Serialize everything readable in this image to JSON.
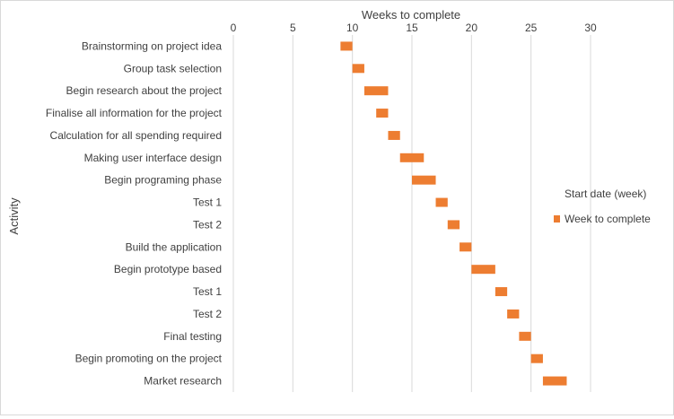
{
  "chart_data": {
    "type": "bar",
    "orientation": "horizontal",
    "stacked": true,
    "title": "",
    "xlabel": "Weeks to complete",
    "ylabel": "Activity",
    "x_axis_position": "top",
    "xlim": [
      0,
      30
    ],
    "xticks": [
      0,
      5,
      10,
      15,
      20,
      25,
      30
    ],
    "grid": true,
    "categories": [
      "Brainstorming on project idea",
      "Group task selection",
      "Begin research about the project",
      "Finalise all information for the project",
      "Calculation for all spending required",
      "Making user interface design",
      "Begin programing phase",
      "Test 1",
      "Test 2",
      "Build the application",
      "Begin prototype based",
      "Test 1",
      "Test 2",
      "Final testing",
      "Begin promoting on the project",
      "Market research"
    ],
    "series": [
      {
        "name": "Start date (week)",
        "color": "none",
        "values": [
          9,
          10,
          11,
          12,
          13,
          14,
          15,
          17,
          18,
          19,
          20,
          22,
          23,
          24,
          25,
          26
        ]
      },
      {
        "name": "Week to complete",
        "color": "#ED7D31",
        "values": [
          1,
          1,
          2,
          1,
          1,
          2,
          2,
          1,
          1,
          1,
          2,
          1,
          1,
          1,
          1,
          2
        ]
      }
    ],
    "legend_position": "right"
  }
}
